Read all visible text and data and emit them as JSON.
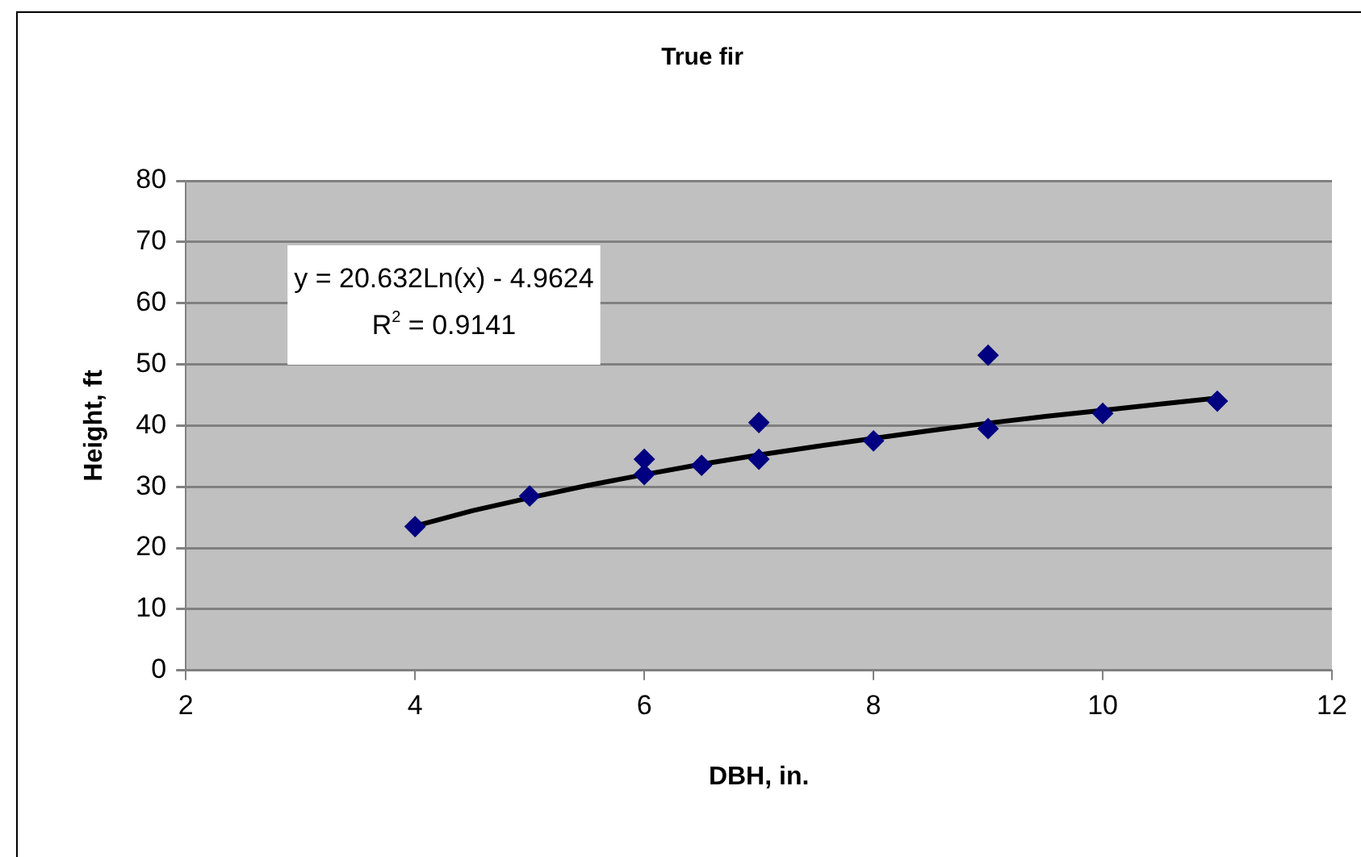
{
  "chart_data": {
    "type": "scatter",
    "title": "True fir",
    "xlabel": "DBH, in.",
    "ylabel": "Height, ft",
    "xlim": [
      2,
      12
    ],
    "xticks": [
      2,
      4,
      6,
      8,
      10,
      12
    ],
    "ylim": [
      0,
      80
    ],
    "yticks": [
      0,
      10,
      20,
      30,
      40,
      50,
      60,
      70,
      80
    ],
    "grid": "y",
    "legend": false,
    "marker": "diamond",
    "annotations": [
      "y = 20.632Ln(x) - 4.9624",
      "R$^{2}$ = 0.9141"
    ],
    "series": [
      {
        "type": "scatter",
        "color": "#000080",
        "x": [
          4,
          5,
          6,
          6,
          6.5,
          7,
          7,
          8,
          9,
          9,
          10,
          11
        ],
        "values": [
          23.5,
          28.5,
          34.5,
          32,
          33.5,
          40.5,
          34.5,
          37.5,
          51.5,
          39.5,
          42,
          44
        ]
      },
      {
        "type": "line",
        "color": "#000000",
        "marker": "none",
        "x": [
          4,
          4.5,
          5,
          5.5,
          6,
          6.5,
          7,
          7.5,
          8,
          8.5,
          9,
          9.5,
          10,
          10.5,
          11
        ],
        "values": [
          23.6,
          26.1,
          28.2,
          30.2,
          32,
          33.7,
          35.2,
          36.6,
          37.9,
          39.2,
          40.4,
          41.5,
          42.5,
          43.5,
          44.5
        ]
      }
    ]
  }
}
